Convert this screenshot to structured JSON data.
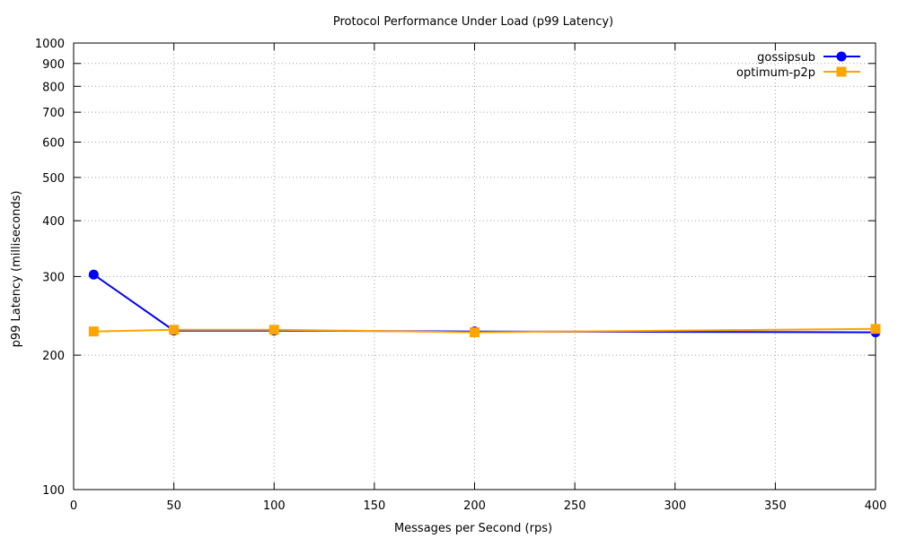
{
  "chart_data": {
    "type": "line",
    "title": "Protocol Performance Under Load (p99 Latency)",
    "xlabel": "Messages per Second (rps)",
    "ylabel": "p99 Latency (milliseconds)",
    "xlim": [
      0,
      400
    ],
    "ylim": [
      100,
      1000
    ],
    "yscale": "log",
    "grid": true,
    "legend_position": "top-right",
    "x_ticks": [
      "0",
      "50",
      "100",
      "150",
      "200",
      "250",
      "300",
      "350",
      "400"
    ],
    "y_ticks": [
      "100",
      "200",
      "300",
      "400",
      "500",
      "600",
      "700",
      "800",
      "900",
      "1000"
    ],
    "series": [
      {
        "name": "gossipsub",
        "color": "#0000ff",
        "marker": "circle",
        "x": [
          10,
          50,
          100,
          200,
          400
        ],
        "y": [
          303,
          227,
          227,
          226,
          225
        ]
      },
      {
        "name": "optimum-p2p",
        "color": "#ffa500",
        "marker": "square",
        "x": [
          10,
          50,
          100,
          200,
          400
        ],
        "y": [
          226,
          228,
          228,
          225,
          229
        ]
      }
    ]
  }
}
